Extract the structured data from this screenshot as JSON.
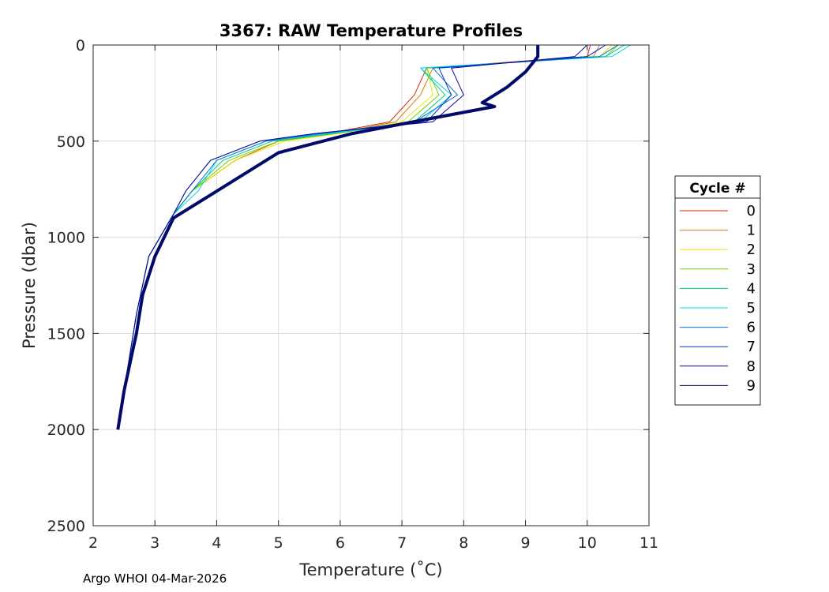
{
  "chart_data": {
    "type": "line",
    "title": "3367: RAW Temperature Profiles",
    "xlabel": "Temperature (˚C)",
    "ylabel": "Pressure (dbar)",
    "xlim": [
      2,
      11
    ],
    "ylim": [
      0,
      2500
    ],
    "y_reversed": true,
    "grid": true,
    "x_ticks": [
      "2",
      "3",
      "4",
      "5",
      "6",
      "7",
      "8",
      "9",
      "10",
      "11"
    ],
    "y_ticks": [
      "0",
      "500",
      "1000",
      "1500",
      "2000",
      "2500"
    ],
    "legend": {
      "title": "Cycle #",
      "position": "right"
    },
    "series": [
      {
        "name": "0",
        "color": "#d62a00",
        "highlight": false,
        "x": [
          10.05,
          10.0,
          7.4,
          7.2,
          6.8,
          5.8,
          5.0,
          4.3,
          3.6,
          3.3,
          2.9,
          2.7,
          2.6,
          2.5,
          2.4
        ],
        "y": [
          0,
          60,
          120,
          260,
          400,
          460,
          500,
          600,
          760,
          880,
          1100,
          1400,
          1600,
          1800,
          2000
        ]
      },
      {
        "name": "1",
        "color": "#e07a00",
        "highlight": false,
        "x": [
          10.2,
          10.1,
          7.5,
          7.3,
          6.9,
          5.9,
          5.0,
          4.3,
          3.6,
          3.3,
          2.9,
          2.7,
          2.6,
          2.5,
          2.4
        ],
        "y": [
          0,
          60,
          120,
          260,
          400,
          460,
          500,
          600,
          760,
          880,
          1100,
          1400,
          1600,
          1800,
          2000
        ]
      },
      {
        "name": "2",
        "color": "#e8e800",
        "highlight": false,
        "x": [
          10.4,
          10.2,
          7.4,
          7.5,
          7.0,
          6.0,
          5.1,
          4.3,
          3.6,
          3.3,
          2.9,
          2.7,
          2.6,
          2.5,
          2.4
        ],
        "y": [
          0,
          60,
          120,
          260,
          400,
          460,
          500,
          600,
          760,
          880,
          1100,
          1400,
          1600,
          1800,
          2000
        ]
      },
      {
        "name": "3",
        "color": "#6cd400",
        "highlight": false,
        "x": [
          10.5,
          10.3,
          7.4,
          7.6,
          7.1,
          5.9,
          5.0,
          4.2,
          3.6,
          3.3,
          2.9,
          2.7,
          2.6,
          2.5,
          2.4
        ],
        "y": [
          0,
          60,
          120,
          260,
          400,
          460,
          500,
          600,
          760,
          880,
          1100,
          1400,
          1600,
          1800,
          2000
        ]
      },
      {
        "name": "4",
        "color": "#00c880",
        "highlight": false,
        "x": [
          10.6,
          10.3,
          7.3,
          7.7,
          7.2,
          5.9,
          4.9,
          4.1,
          3.6,
          3.3,
          2.9,
          2.7,
          2.6,
          2.5,
          2.4
        ],
        "y": [
          0,
          60,
          120,
          260,
          400,
          460,
          500,
          600,
          760,
          880,
          1100,
          1400,
          1600,
          1800,
          2000
        ]
      },
      {
        "name": "5",
        "color": "#00d8e8",
        "highlight": false,
        "x": [
          10.7,
          10.4,
          7.3,
          7.8,
          7.3,
          5.8,
          4.8,
          4.0,
          3.7,
          3.3,
          2.9,
          2.7,
          2.6,
          2.5,
          2.4
        ],
        "y": [
          0,
          60,
          120,
          260,
          400,
          460,
          500,
          600,
          760,
          880,
          1100,
          1400,
          1600,
          1800,
          2000
        ]
      },
      {
        "name": "6",
        "color": "#0070e0",
        "highlight": false,
        "x": [
          10.5,
          10.2,
          7.5,
          7.9,
          7.2,
          5.7,
          4.8,
          4.0,
          3.6,
          3.3,
          2.9,
          2.7,
          2.6,
          2.5,
          2.4
        ],
        "y": [
          0,
          60,
          120,
          260,
          400,
          460,
          500,
          600,
          760,
          880,
          1100,
          1400,
          1600,
          1800,
          2000
        ]
      },
      {
        "name": "7",
        "color": "#0030c8",
        "highlight": false,
        "x": [
          10.3,
          10.0,
          7.6,
          7.8,
          7.4,
          5.6,
          4.7,
          3.9,
          3.5,
          3.3,
          2.9,
          2.7,
          2.6,
          2.5,
          2.4
        ],
        "y": [
          0,
          60,
          120,
          260,
          400,
          460,
          500,
          600,
          760,
          880,
          1100,
          1400,
          1600,
          1800,
          2000
        ]
      },
      {
        "name": "8",
        "color": "#0a0a9a",
        "highlight": false,
        "x": [
          10.0,
          9.8,
          7.8,
          8.0,
          7.5,
          5.6,
          4.7,
          3.9,
          3.5,
          3.3,
          2.9,
          2.7,
          2.6,
          2.5,
          2.4
        ],
        "y": [
          0,
          60,
          120,
          260,
          400,
          460,
          500,
          600,
          760,
          880,
          1100,
          1400,
          1600,
          1800,
          2000
        ]
      },
      {
        "name": "9",
        "color": "#000a6a",
        "highlight": true,
        "x": [
          9.2,
          9.2,
          9.0,
          8.7,
          8.3,
          8.5,
          7.5,
          6.2,
          5.0,
          3.8,
          3.3,
          3.0,
          2.8,
          2.7,
          2.6,
          2.5,
          2.4
        ],
        "y": [
          0,
          60,
          140,
          220,
          300,
          320,
          380,
          460,
          560,
          800,
          900,
          1100,
          1300,
          1500,
          1650,
          1800,
          2000
        ]
      }
    ]
  },
  "footer": {
    "text": "Argo WHOI 04-Mar-2026"
  }
}
